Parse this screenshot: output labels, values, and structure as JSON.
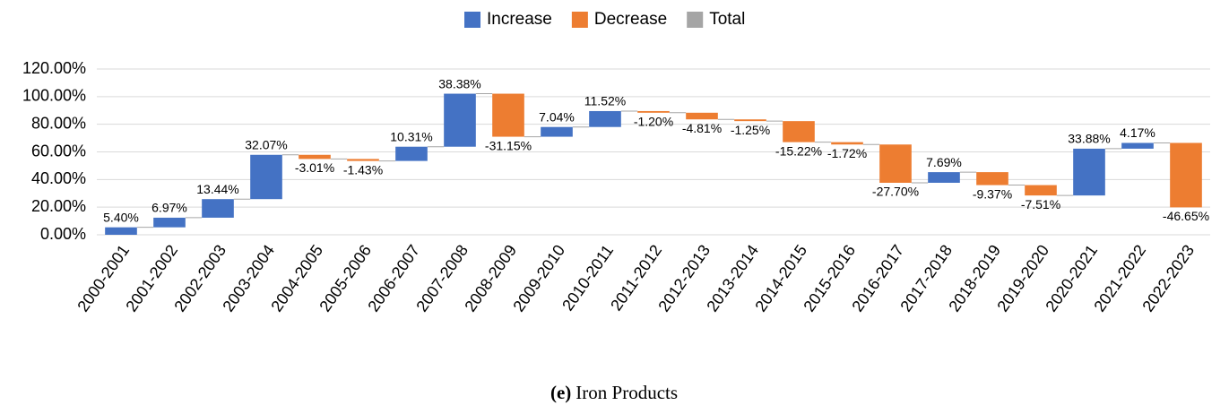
{
  "chart_data": {
    "type": "waterfall",
    "legend": [
      {
        "name": "Increase",
        "color": "#4472c4"
      },
      {
        "name": "Decrease",
        "color": "#ed7d31"
      },
      {
        "name": "Total",
        "color": "#a5a5a5"
      }
    ],
    "legend_position": "top",
    "categories": [
      "2000-2001",
      "2001-2002",
      "2002-2003",
      "2003-2004",
      "2004-2005",
      "2005-2006",
      "2006-2007",
      "2007-2008",
      "2008-2009",
      "2009-2010",
      "2010-2011",
      "2011-2012",
      "2012-2013",
      "2013-2014",
      "2014-2015",
      "2015-2016",
      "2016-2017",
      "2017-2018",
      "2018-2019",
      "2019-2020",
      "2020-2021",
      "2021-2022",
      "2022-2023"
    ],
    "values": [
      5.4,
      6.97,
      13.44,
      32.07,
      -3.01,
      -1.43,
      10.31,
      38.38,
      -31.15,
      7.04,
      11.52,
      -1.2,
      -4.81,
      -1.25,
      -15.22,
      -1.72,
      -27.7,
      7.69,
      -9.37,
      -7.51,
      33.88,
      4.17,
      -46.65
    ],
    "value_labels": [
      "5.40%",
      "6.97%",
      "13.44%",
      "32.07%",
      "-3.01%",
      "-1.43%",
      "10.31%",
      "38.38%",
      "-31.15%",
      "7.04%",
      "11.52%",
      "-1.20%",
      "-4.81%",
      "-1.25%",
      "-15.22%",
      "-1.72%",
      "-27.70%",
      "7.69%",
      "-9.37%",
      "-7.51%",
      "33.88%",
      "4.17%",
      "-46.65%"
    ],
    "ylim": [
      0,
      120
    ],
    "yticks": [
      {
        "value": 0,
        "label": "0.00%"
      },
      {
        "value": 20,
        "label": "20.00%"
      },
      {
        "value": 40,
        "label": "40.00%"
      },
      {
        "value": 60,
        "label": "60.00%"
      },
      {
        "value": 80,
        "label": "80.00%"
      },
      {
        "value": 100,
        "label": "100.00%"
      },
      {
        "value": 120,
        "label": "120.00%"
      }
    ],
    "grid": true,
    "caption": {
      "label": "(e)",
      "text": "Iron Products"
    }
  }
}
